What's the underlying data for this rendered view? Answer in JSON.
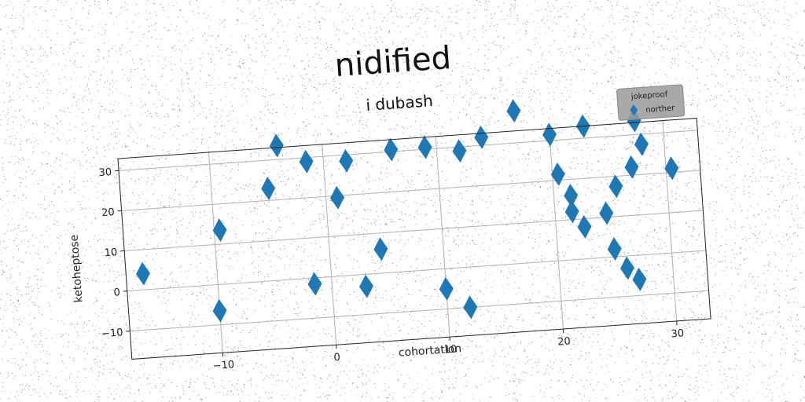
{
  "figure": {
    "suptitle": "nidified",
    "title": "i  dubash"
  },
  "chart_data": {
    "type": "scatter",
    "title": "i  dubash",
    "xlabel": "cohortation",
    "ylabel": "ketoheptose",
    "xlim": [
      -18,
      33
    ],
    "ylim": [
      -17,
      33
    ],
    "xticks": [
      -10,
      0,
      10,
      20,
      30
    ],
    "yticks": [
      -10,
      0,
      10,
      20,
      30
    ],
    "xtick_labels": [
      "−10",
      "0",
      "10",
      "20",
      "30"
    ],
    "ytick_labels": [
      "−10",
      "0",
      "10",
      "20",
      "30"
    ],
    "grid": true,
    "legend": {
      "title": "jokeproof",
      "placement": "top-right"
    },
    "marker": "diamond",
    "color": "#1f77b4",
    "series": [
      {
        "name": "norther",
        "x": [
          -16.5,
          -10,
          -9.5,
          -5,
          -4,
          -1.5,
          -1.5,
          1,
          2,
          3,
          4.5,
          6,
          9,
          10,
          12,
          12,
          14,
          17,
          20,
          20.5,
          21.5,
          21.5,
          22.5,
          23,
          24.5,
          25,
          25.5,
          26,
          27,
          27,
          27.5,
          28,
          30.5
        ],
        "y": [
          4,
          -6.5,
          13.5,
          23,
          33.5,
          -1.5,
          29,
          19.5,
          28.5,
          -3,
          6,
          30.5,
          30.5,
          -5,
          -10,
          29,
          32,
          38,
          31.5,
          21.5,
          16,
          12,
          8,
          33,
          11,
          2,
          17.5,
          -3,
          -6,
          22,
          33.5,
          27.5,
          21
        ]
      }
    ]
  }
}
